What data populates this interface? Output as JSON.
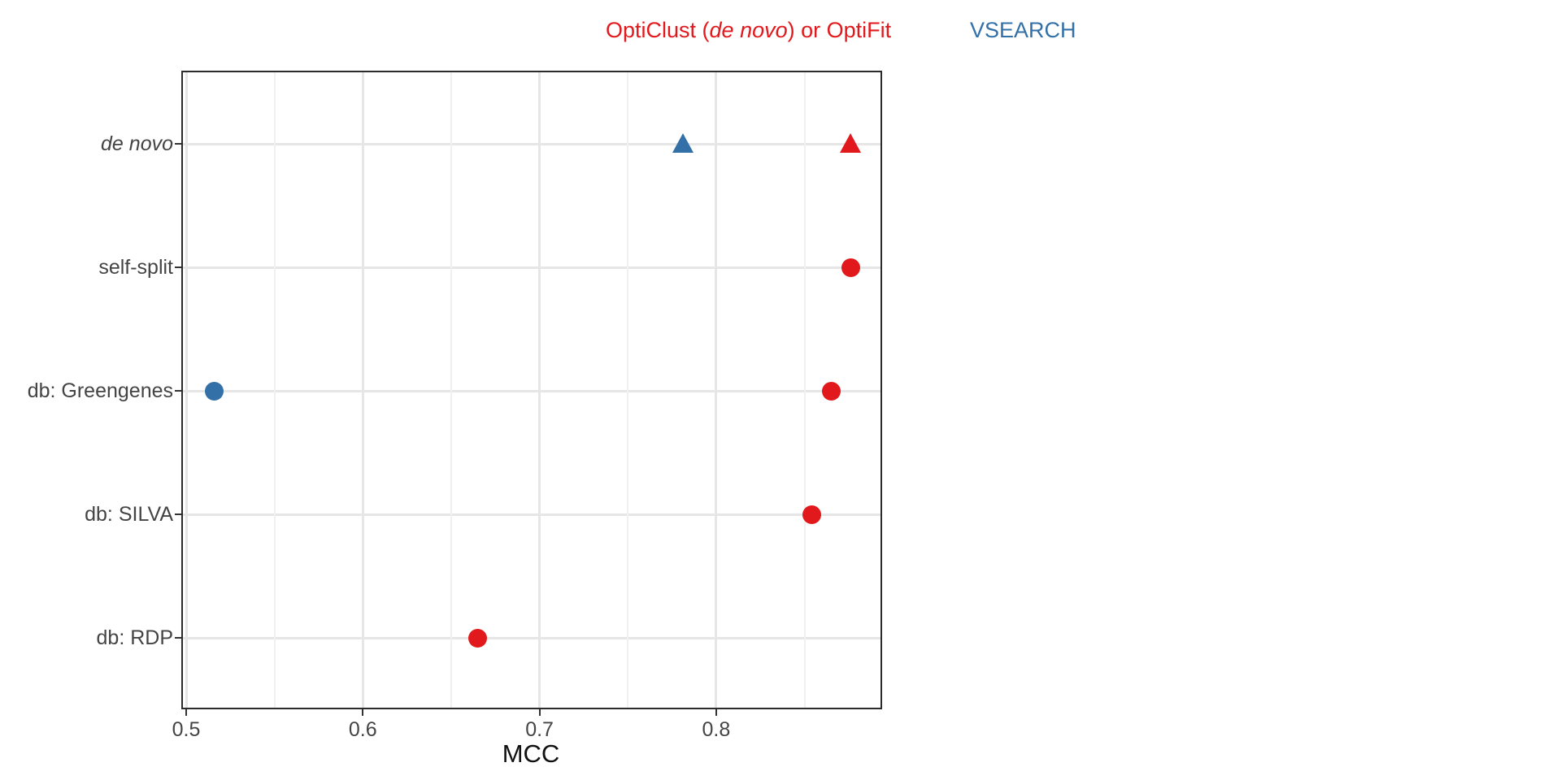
{
  "chart_data": {
    "type": "scatter",
    "xlabel": "MCC",
    "x_ticks": [
      0.5,
      0.6,
      0.7,
      0.8
    ],
    "x_tick_labels": [
      "0.5",
      "0.6",
      "0.7",
      "0.8"
    ],
    "x_minor_ticks": [
      0.55,
      0.65,
      0.75,
      0.85
    ],
    "xlim": [
      0.497,
      0.896
    ],
    "grid": true,
    "legend_position": "top",
    "legend": [
      {
        "prefix": "OptiClust (",
        "italic": "de novo",
        "suffix": ") or OptiFit",
        "color": "#E2191C"
      },
      {
        "text": "VSEARCH",
        "color": "#3370A8"
      }
    ],
    "categories": [
      {
        "label": "de novo",
        "italic": true
      },
      {
        "label": "self-split",
        "italic": false
      },
      {
        "label": "db: Greengenes",
        "italic": false
      },
      {
        "label": "db: SILVA",
        "italic": false
      },
      {
        "label": "db: RDP",
        "italic": false
      }
    ],
    "series": [
      {
        "name": "OptiClust (de novo) or OptiFit",
        "color": "#E2191C",
        "points": [
          {
            "category": "de novo",
            "mcc": 0.876,
            "marker": "triangle"
          },
          {
            "category": "self-split",
            "mcc": 0.876,
            "marker": "circle"
          },
          {
            "category": "db: Greengenes",
            "mcc": 0.865,
            "marker": "circle"
          },
          {
            "category": "db: SILVA",
            "mcc": 0.854,
            "marker": "circle"
          },
          {
            "category": "db: RDP",
            "mcc": 0.665,
            "marker": "circle"
          }
        ]
      },
      {
        "name": "VSEARCH",
        "color": "#3370A8",
        "points": [
          {
            "category": "de novo",
            "mcc": 0.781,
            "marker": "triangle"
          },
          {
            "category": "db: Greengenes",
            "mcc": 0.516,
            "marker": "circle"
          }
        ]
      }
    ]
  }
}
